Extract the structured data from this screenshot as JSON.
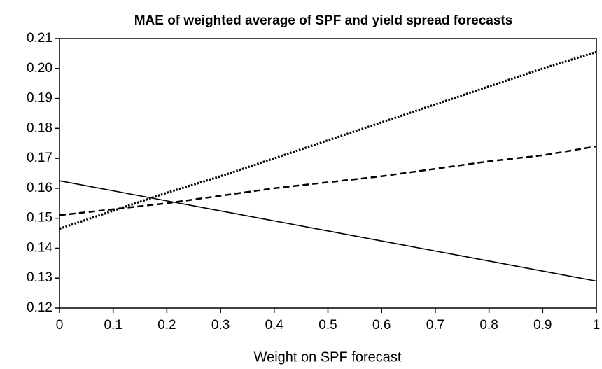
{
  "chart_data": {
    "type": "line",
    "title": "MAE of weighted average of SPF and yield spread forecasts",
    "x_label": "Weight on SPF forecast",
    "x": [
      0,
      0.1,
      0.2,
      0.3,
      0.4,
      0.5,
      0.6,
      0.7,
      0.8,
      0.9,
      1
    ],
    "series": [
      {
        "color": "#000000",
        "style": "solid",
        "values": [
          0.1625,
          0.15915,
          0.1558,
          0.15245,
          0.1491,
          0.14575,
          0.1424,
          0.13905,
          0.1357,
          0.13235,
          0.129
        ]
      },
      {
        "color": "#000000",
        "style": "dashed",
        "values": [
          0.151,
          0.153,
          0.155,
          0.1575,
          0.16,
          0.162,
          0.164,
          0.1665,
          0.169,
          0.171,
          0.174
        ]
      },
      {
        "color": "#000000",
        "style": "dotted",
        "values": [
          0.1465,
          0.1525,
          0.1585,
          0.164,
          0.17,
          0.176,
          0.182,
          0.188,
          0.194,
          0.2,
          0.2055
        ]
      }
    ],
    "xlim": [
      0,
      1
    ],
    "xticks": [
      0,
      0.1,
      0.2,
      0.3,
      0.4,
      0.5,
      0.6,
      0.7,
      0.8,
      0.9,
      1
    ],
    "ylim": [
      0.12,
      0.21
    ],
    "yticks": [
      0.12,
      0.13,
      0.14,
      0.15,
      0.16,
      0.17,
      0.18,
      0.19,
      {
        "value": 0.2,
        "label": "0.20"
      },
      0.21
    ],
    "grid": false
  }
}
